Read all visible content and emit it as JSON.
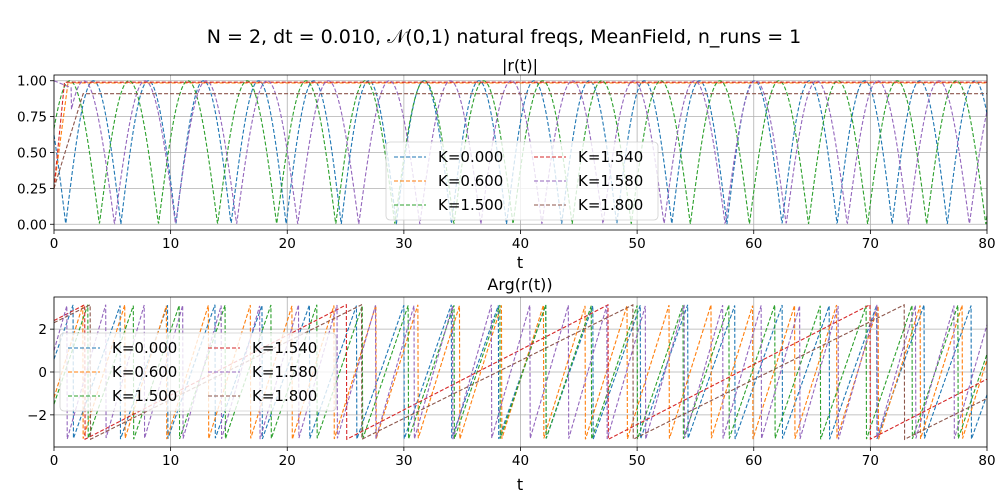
{
  "figure": {
    "suptitle": "N = 2, dt = 0.010, 𝒩(0,1) natural freqs, MeanField, n_runs = 1"
  },
  "chart_data": [
    {
      "type": "line",
      "title": "|r(t)|",
      "xlabel": "t",
      "ylabel": "",
      "xlim": [
        0,
        80
      ],
      "ylim": [
        -0.04,
        1.04
      ],
      "xticks": [
        "0",
        "10",
        "20",
        "30",
        "40",
        "50",
        "60",
        "70",
        "80"
      ],
      "yticks": [
        "0.00",
        "0.25",
        "0.50",
        "0.75",
        "1.00"
      ],
      "grid": true,
      "legend_position": "lower-center",
      "legend_columns": 2,
      "series": [
        {
          "name": "K=0.000",
          "color": "#1f77b4",
          "kind": "beat",
          "omega": 0.665,
          "phase": 0.9
        },
        {
          "name": "K=0.600",
          "color": "#ff7f0e",
          "kind": "lock",
          "level": 0.985,
          "rise_to": 1.2
        },
        {
          "name": "K=1.500",
          "color": "#2ca02c",
          "kind": "beat",
          "omega": 0.62,
          "phase": 2.3
        },
        {
          "name": "K=1.540",
          "color": "#d62728",
          "kind": "lock",
          "level": 0.99,
          "rise_to": 0.9
        },
        {
          "name": "K=1.580",
          "color": "#9467bd",
          "kind": "beat",
          "omega": 0.6,
          "phase": 1.6,
          "start": 1.5
        },
        {
          "name": "K=1.800",
          "color": "#8c564b",
          "kind": "lock",
          "level": 0.91,
          "rise_to": 2.5
        }
      ]
    },
    {
      "type": "line",
      "title": "Arg(r(t))",
      "xlabel": "t",
      "ylabel": "",
      "xlim": [
        0,
        80
      ],
      "ylim": [
        -3.5,
        3.5
      ],
      "xticks": [
        "0",
        "10",
        "20",
        "30",
        "40",
        "50",
        "60",
        "70",
        "80"
      ],
      "yticks": [
        "−2",
        "0",
        "2"
      ],
      "ytick_values": [
        -2,
        0,
        2
      ],
      "grid": true,
      "legend_position": "upper-left",
      "legend_columns": 2,
      "series": [
        {
          "name": "K=0.000",
          "color": "#1f77b4",
          "rate": 1.55,
          "phase": 0.6
        },
        {
          "name": "K=0.600",
          "color": "#ff7f0e",
          "rate": 1.75,
          "phase": -1.2
        },
        {
          "name": "K=1.500",
          "color": "#2ca02c",
          "rate": 1.6,
          "phase": -1.5
        },
        {
          "name": "K=1.540",
          "color": "#d62728",
          "rate": 0.28,
          "phase": 2.4
        },
        {
          "name": "K=1.580",
          "color": "#9467bd",
          "rate": 1.9,
          "phase": 1.0
        },
        {
          "name": "K=1.800",
          "color": "#8c564b",
          "rate": 0.27,
          "phase": 2.3
        }
      ]
    }
  ]
}
